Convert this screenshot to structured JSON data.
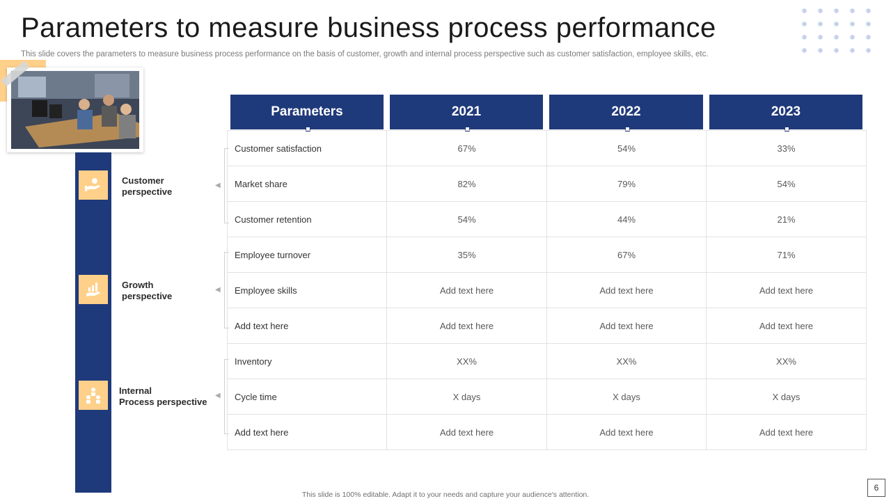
{
  "slide": {
    "title": "Parameters to measure business process performance",
    "subtitle": "This slide covers the parameters to measure business process performance on the basis of customer, growth and internal process perspective such as customer satisfaction, employee skills, etc.",
    "footer": "This slide is 100% editable.  Adapt it to your needs and capture your audience's attention.",
    "page_number": "6"
  },
  "colors": {
    "primary": "#1f3a7a",
    "accent": "#ffd08a"
  },
  "perspectives": [
    {
      "label_line1": "Customer",
      "label_line2": "perspective",
      "icon": "hand-giving-icon"
    },
    {
      "label_line1": "Growth",
      "label_line2": "perspective",
      "icon": "growth-chart-hand-icon"
    },
    {
      "label_line1": "Internal",
      "label_line2": "Process perspective",
      "icon": "team-network-icon"
    }
  ],
  "table": {
    "headers": [
      "Parameters",
      "2021",
      "2022",
      "2023"
    ],
    "rows": [
      [
        "Customer satisfaction",
        "67%",
        "54%",
        "33%"
      ],
      [
        "Market share",
        "82%",
        "79%",
        "54%"
      ],
      [
        "Customer retention",
        "54%",
        "44%",
        "21%"
      ],
      [
        "Employee turnover",
        "35%",
        "67%",
        "71%"
      ],
      [
        "Employee skills",
        "Add text here",
        "Add text here",
        "Add text here"
      ],
      [
        "Add text here",
        "Add text here",
        "Add text here",
        "Add text here"
      ],
      [
        "Inventory",
        "XX%",
        "XX%",
        "XX%"
      ],
      [
        "Cycle time",
        "X days",
        "X days",
        "X days"
      ],
      [
        "Add text here",
        "Add text here",
        "Add text here",
        "Add text here"
      ]
    ]
  }
}
